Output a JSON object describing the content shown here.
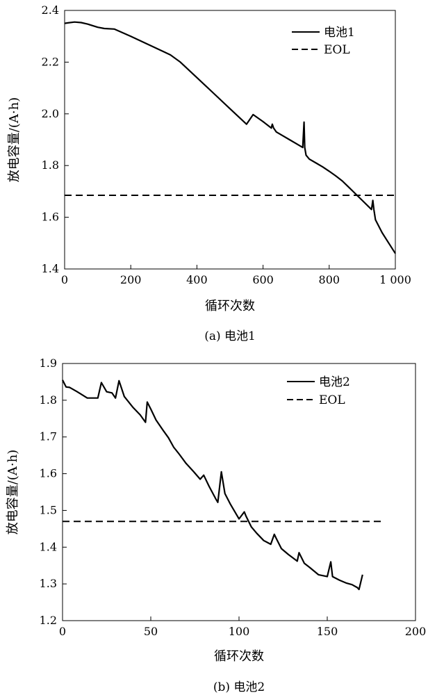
{
  "chart_data": [
    {
      "type": "line",
      "caption": "(a) 电池1",
      "xlabel": "循环次数",
      "ylabel": "放电容量/(A·h)",
      "xlim": [
        0,
        1000
      ],
      "ylim": [
        1.4,
        2.4
      ],
      "xticks": [
        0,
        200,
        400,
        600,
        800,
        1000
      ],
      "xtick_labels": [
        "0",
        "200",
        "400",
        "600",
        "800",
        "1 000"
      ],
      "yticks": [
        1.4,
        1.6,
        1.8,
        2.0,
        2.2,
        2.4
      ],
      "ytick_labels": [
        "1.4",
        "1.6",
        "1.8",
        "2.0",
        "2.2",
        "2.4"
      ],
      "grid": false,
      "legend_position": "top-right",
      "series": [
        {
          "name": "电池1",
          "style": "solid",
          "x": [
            0,
            10,
            30,
            50,
            70,
            100,
            120,
            150,
            200,
            250,
            300,
            320,
            350,
            400,
            450,
            500,
            550,
            570,
            600,
            625,
            628,
            632,
            640,
            660,
            680,
            700,
            720,
            724,
            726,
            730,
            740,
            760,
            780,
            800,
            820,
            840,
            860,
            880,
            900,
            920,
            928,
            932,
            935,
            940,
            960,
            980,
            1000
          ],
          "values": [
            2.35,
            2.352,
            2.355,
            2.353,
            2.347,
            2.335,
            2.33,
            2.328,
            2.3,
            2.27,
            2.24,
            2.228,
            2.2,
            2.14,
            2.08,
            2.02,
            1.96,
            1.997,
            1.97,
            1.945,
            1.96,
            1.945,
            1.93,
            1.915,
            1.9,
            1.885,
            1.87,
            1.968,
            1.87,
            1.84,
            1.825,
            1.81,
            1.795,
            1.778,
            1.76,
            1.74,
            1.715,
            1.69,
            1.665,
            1.64,
            1.63,
            1.665,
            1.63,
            1.59,
            1.54,
            1.5,
            1.46
          ]
        },
        {
          "name": "EOL",
          "style": "dashed",
          "x": [
            0,
            1000
          ],
          "values": [
            1.685,
            1.685
          ]
        }
      ]
    },
    {
      "type": "line",
      "caption": "(b) 电池2",
      "xlabel": "循环次数",
      "ylabel": "放电容量/(A·h)",
      "xlim": [
        0,
        200
      ],
      "ylim": [
        1.2,
        1.9
      ],
      "xticks": [
        0,
        50,
        100,
        150,
        200
      ],
      "xtick_labels": [
        "0",
        "50",
        "100",
        "150",
        "200"
      ],
      "yticks": [
        1.2,
        1.3,
        1.4,
        1.5,
        1.6,
        1.7,
        1.8,
        1.9
      ],
      "ytick_labels": [
        "1.2",
        "1.3",
        "1.4",
        "1.5",
        "1.6",
        "1.7",
        "1.8",
        "1.9"
      ],
      "grid": false,
      "legend_position": "top-right",
      "series": [
        {
          "name": "电池2",
          "style": "solid",
          "x": [
            0,
            2,
            4,
            8,
            10,
            14,
            16,
            20,
            22,
            25,
            28,
            30,
            32,
            35,
            40,
            44,
            47,
            48,
            50,
            53,
            57,
            60,
            63,
            66,
            70,
            74,
            78,
            80,
            83,
            87,
            88,
            90,
            92,
            95,
            100,
            103,
            104,
            107,
            110,
            114,
            118,
            120,
            121,
            124,
            128,
            133,
            134,
            137,
            140,
            145,
            150,
            152,
            153,
            157,
            161,
            164,
            167,
            168,
            170
          ],
          "values": [
            1.855,
            1.836,
            1.835,
            1.824,
            1.818,
            1.806,
            1.806,
            1.806,
            1.848,
            1.823,
            1.82,
            1.806,
            1.853,
            1.81,
            1.78,
            1.76,
            1.74,
            1.795,
            1.776,
            1.746,
            1.718,
            1.698,
            1.672,
            1.654,
            1.628,
            1.607,
            1.585,
            1.596,
            1.566,
            1.53,
            1.522,
            1.605,
            1.546,
            1.518,
            1.477,
            1.496,
            1.484,
            1.455,
            1.438,
            1.418,
            1.408,
            1.435,
            1.425,
            1.396,
            1.38,
            1.362,
            1.385,
            1.356,
            1.345,
            1.325,
            1.32,
            1.36,
            1.32,
            1.31,
            1.302,
            1.298,
            1.29,
            1.285,
            1.325
          ]
        },
        {
          "name": "EOL",
          "style": "dashed",
          "x": [
            0,
            182
          ],
          "values": [
            1.47,
            1.47
          ]
        }
      ]
    }
  ]
}
